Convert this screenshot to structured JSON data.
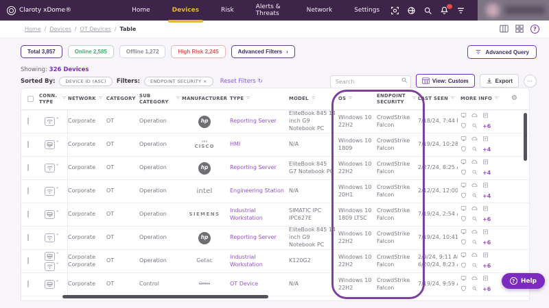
{
  "topbar": {
    "brand": "Claroty xDome®",
    "nav": [
      {
        "label": "Home",
        "active": false
      },
      {
        "label": "Devices",
        "active": true
      },
      {
        "label": "Risk",
        "active": false
      },
      {
        "label": "Alerts & Threats",
        "active": false
      },
      {
        "label": "Network",
        "active": false
      },
      {
        "label": "Settings",
        "active": false
      }
    ],
    "icons": [
      "scan-icon",
      "globe-icon",
      "search-icon",
      "notifications-icon",
      "filter-icon"
    ]
  },
  "breadcrumb": {
    "items": [
      "Home",
      "Devices",
      "OT Devices",
      "Table"
    ]
  },
  "summary_chips": [
    {
      "label": "Total 3,857",
      "style": "total"
    },
    {
      "label": "Online 2,585",
      "style": "online"
    },
    {
      "label": "Offline 1,272",
      "style": "offline"
    },
    {
      "label": "High Risk 2,245",
      "style": "risk"
    }
  ],
  "advanced_filters": {
    "label": "Advanced Filters",
    "chevron": "›"
  },
  "advanced_query_label": "Advanced Query",
  "showing": {
    "prefix": "Showing:",
    "count": "326 Devices"
  },
  "sorted": {
    "label": "Sorted By:",
    "sort_chip": "DEVICE ID (ASC)",
    "filters_label": "Filters:",
    "filter_chip": "ENDPOINT SECURITY",
    "filter_chip_close": "×",
    "reset_label": "Reset Filters",
    "reset_glyph": "↻"
  },
  "search": {
    "placeholder": "Search"
  },
  "view_button_label": "View: Custom",
  "export_button_label": "Export",
  "more_button_glyph": "⋯",
  "table": {
    "columns": [
      {
        "label": "",
        "kind": "checkbox"
      },
      {
        "label": "CONN. TYPE",
        "filter": true
      },
      {
        "label": "NETWORK",
        "filter": true
      },
      {
        "label": "CATEGORY",
        "filter": true
      },
      {
        "label": "SUB CATEGORY",
        "filter": true
      },
      {
        "label": "MANUFACTURER",
        "filter": true
      },
      {
        "label": "TYPE",
        "filter": true
      },
      {
        "label": "MODEL",
        "filter": true
      },
      {
        "label": "OS",
        "filter": true
      },
      {
        "label": "ENDPOINT SECURITY",
        "filter": true
      },
      {
        "label": "LAST SEEN",
        "filter": true
      },
      {
        "label": "MORE INFO",
        "filter": true
      },
      {
        "label": "",
        "kind": "gear"
      }
    ],
    "rows": [
      {
        "conn": [
          "wifi"
        ],
        "network": [
          "Corporate"
        ],
        "category": "OT",
        "sub_category": "Operation",
        "manufacturer": {
          "brand": "hp",
          "label": "hp"
        },
        "type": "Reporting Server",
        "model": "EliteBook 845 14 inch G9 Notebook PC",
        "os": "Windows 10 22H2",
        "endpoint_security": "CrowdStrike Falcon",
        "last_seen": [
          "7/18/24, 7:44 PM"
        ],
        "more_count": "+6"
      },
      {
        "conn": [
          "ethernet"
        ],
        "network": [
          "Corporate"
        ],
        "category": "OT",
        "sub_category": "Operation",
        "manufacturer": {
          "brand": "cisco",
          "label": "CISCO"
        },
        "type": "HMI",
        "model": "N/A",
        "os": "Windows 10 1809",
        "endpoint_security": "CrowdStrike Falcon",
        "last_seen": [
          "7/19/24, 10:28 AM"
        ],
        "more_count": "+4"
      },
      {
        "conn": [
          "wifi"
        ],
        "network": [
          "Corporate"
        ],
        "category": "OT",
        "sub_category": "Operation",
        "manufacturer": {
          "brand": "hp",
          "label": "hp"
        },
        "type": "Reporting Server",
        "model": "EliteBook 845 G7 Notebook PC",
        "os": "Windows 10 22H2",
        "endpoint_security": "CrowdStrike Falcon",
        "last_seen": [
          "2/27/24, 8:25 AM"
        ],
        "more_count": "+4"
      },
      {
        "conn": [
          "wifi"
        ],
        "network": [
          "Corporate"
        ],
        "category": "OT",
        "sub_category": "Operation",
        "manufacturer": {
          "brand": "intel",
          "label": "intel"
        },
        "type": "Engineering Station",
        "model": "N/A",
        "os": "Windows 10 20H1",
        "endpoint_security": "CrowdStrike Falcon",
        "last_seen": [
          "2/12/24, 12:00 PM"
        ],
        "more_count": "+4"
      },
      {
        "conn": [
          "ethernet"
        ],
        "network": [
          "Corporate"
        ],
        "category": "OT",
        "sub_category": "Operation",
        "manufacturer": {
          "brand": "siemens",
          "label": "SIEMENS"
        },
        "type": "Industrial Workstation",
        "model": "SIMATIC IPC IPC627E",
        "os": "Windows 10 1809 LTSC",
        "endpoint_security": "CrowdStrike Falcon",
        "last_seen": [
          "7/19/24, 2:54 AM"
        ],
        "more_count": "+6"
      },
      {
        "conn": [
          "wifi"
        ],
        "network": [
          "Corporate"
        ],
        "category": "OT",
        "sub_category": "Operation",
        "manufacturer": {
          "brand": "hp",
          "label": "hp"
        },
        "type": "Reporting Server",
        "model": "EliteBook 845 14 inch G9 Notebook PC",
        "os": "Windows 10 22H2",
        "endpoint_security": "CrowdStrike Falcon",
        "last_seen": [
          "7/19/24, 10:41 AM"
        ],
        "more_count": "+6"
      },
      {
        "conn": [
          "ethernet",
          "wifi"
        ],
        "network": [
          "Corporate",
          "Corporate"
        ],
        "category": "OT",
        "sub_category": "Operation",
        "manufacturer": {
          "brand": "getac",
          "label": "Getac"
        },
        "type": "Industrial Workstation",
        "model": "K120G2",
        "os": "Windows 10 22H2",
        "endpoint_security": "CrowdStrike Falcon",
        "last_seen": [
          "2/9/24, 9:11 AM",
          "6/20/24, 8:23 AM"
        ],
        "more_count": "+6"
      },
      {
        "conn": [
          "ethernet"
        ],
        "network": [
          "Corporate"
        ],
        "category": "OT",
        "sub_category": "Control",
        "manufacturer": {
          "brand": "omni",
          "label": "Omni"
        },
        "type": "OT Device",
        "model": "N/A",
        "os": "Windows 10 22H2",
        "endpoint_security": "CrowdStrike Falcon",
        "last_seen": [
          "7/19/24, 9:59 AM"
        ],
        "more_count": "+6"
      }
    ]
  },
  "help_fab_label": "Help",
  "colors": {
    "navbar": "#3e2449",
    "nav_active": "#e7b83c",
    "accent_purple": "#7b2cbf",
    "link_purple": "#9451c9",
    "highlight_oval": "#7b3fa0",
    "online_green": "#45a56f",
    "risk_red": "#d95c5c"
  }
}
